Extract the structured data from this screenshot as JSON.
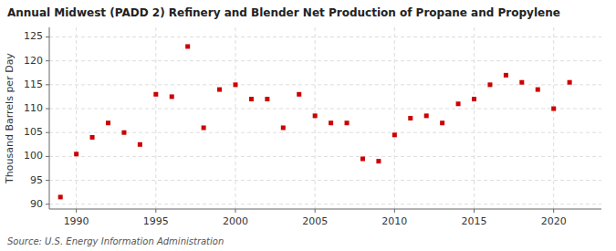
{
  "chart_data": {
    "type": "scatter",
    "title": "Annual Midwest (PADD 2) Refinery and Blender Net Production of Propane and Propylene",
    "ylabel": "Thousand Barrels per Day",
    "annotations": [
      "Source: U.S. Energy Information Administration"
    ],
    "x": [
      1989,
      1990,
      1991,
      1992,
      1993,
      1994,
      1995,
      1996,
      1997,
      1998,
      1999,
      2000,
      2001,
      2002,
      2003,
      2004,
      2005,
      2006,
      2007,
      2008,
      2009,
      2010,
      2011,
      2012,
      2013,
      2014,
      2015,
      2016,
      2017,
      2018,
      2019,
      2020,
      2021
    ],
    "values": [
      91.5,
      100.5,
      104.0,
      107.0,
      105.0,
      102.5,
      113.0,
      112.5,
      123.0,
      106.0,
      114.0,
      115.0,
      112.0,
      112.0,
      106.0,
      113.0,
      108.5,
      107.0,
      107.0,
      99.5,
      99.0,
      104.5,
      108.0,
      108.5,
      107.0,
      111.0,
      112.0,
      115.0,
      117.0,
      115.5,
      114.0,
      110.0,
      115.5
    ],
    "color": "#cc0000",
    "marker": "square",
    "xlim": [
      1988.3,
      2023.0
    ],
    "xticks": [
      1990,
      1995,
      2000,
      2005,
      2010,
      2015,
      2020
    ],
    "ylim": [
      89,
      127
    ],
    "yticks": [
      90,
      95,
      100,
      105,
      110,
      115,
      120,
      125
    ],
    "grid": true
  }
}
